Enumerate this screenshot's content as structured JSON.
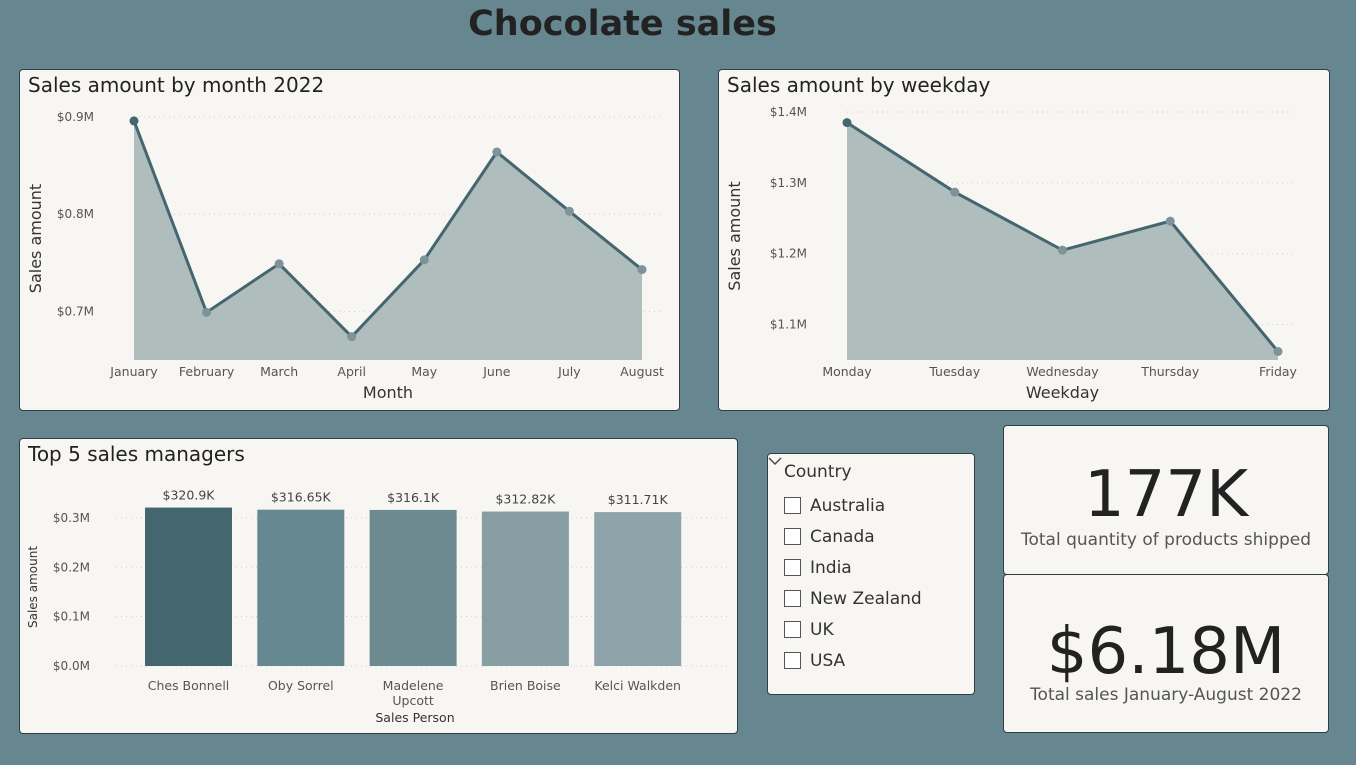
{
  "dashboard_title": "Chocolate sales",
  "colors": {
    "background": "#678790",
    "panel": "#f8f6f2",
    "line": "#44666f",
    "area": "#b0bdbd"
  },
  "chart_data": [
    {
      "type": "area",
      "title": "Sales amount by month 2022",
      "xlabel": "Month",
      "ylabel": "Sales amount",
      "categories": [
        "January",
        "February",
        "March",
        "April",
        "May",
        "June",
        "July",
        "August"
      ],
      "values": [
        0.896,
        0.699,
        0.749,
        0.674,
        0.753,
        0.864,
        0.803,
        0.743
      ],
      "y_ticks": [
        0.7,
        0.8,
        0.9
      ],
      "y_tick_labels": [
        "$0.7M",
        "$0.8M",
        "$0.9M"
      ],
      "ylim": [
        0.65,
        0.9
      ],
      "grid": true
    },
    {
      "type": "area",
      "title": "Sales amount by weekday",
      "xlabel": "Weekday",
      "ylabel": "Sales amount",
      "categories": [
        "Monday",
        "Tuesday",
        "Wednesday",
        "Thursday",
        "Friday"
      ],
      "values": [
        1.385,
        1.287,
        1.205,
        1.246,
        1.062
      ],
      "y_ticks": [
        1.1,
        1.2,
        1.3,
        1.4
      ],
      "y_tick_labels": [
        "$1.1M",
        "$1.2M",
        "$1.3M",
        "$1.4M"
      ],
      "ylim": [
        1.05,
        1.4
      ],
      "grid": true
    },
    {
      "type": "bar",
      "title": "Top 5 sales managers",
      "xlabel": "Sales Person",
      "ylabel": "Sales amount",
      "categories": [
        "Ches Bonnell",
        "Oby Sorrel",
        "Madelene Upcott",
        "Brien Boise",
        "Kelci Walkden"
      ],
      "values": [
        0.3209,
        0.31665,
        0.3161,
        0.31282,
        0.31171
      ],
      "data_labels": [
        "$320.9K",
        "$316.65K",
        "$316.1K",
        "$312.82K",
        "$311.71K"
      ],
      "bar_colors": [
        "#44666f",
        "#668890",
        "#6d8a91",
        "#879ea3",
        "#8fa4aa"
      ],
      "y_ticks": [
        0,
        0.1,
        0.2,
        0.3
      ],
      "y_tick_labels": [
        "$0.0M",
        "$0.1M",
        "$0.2M",
        "$0.3M"
      ],
      "ylim": [
        0,
        0.32
      ],
      "grid": true
    }
  ],
  "slicer": {
    "header": "Country",
    "items": [
      "Australia",
      "Canada",
      "India",
      "New Zealand",
      "UK",
      "USA"
    ]
  },
  "kpis": {
    "quantity": {
      "value": "177K",
      "label": "Total quantity of products shipped"
    },
    "sales": {
      "value": "$6.18M",
      "label": "Total sales January-August 2022"
    }
  }
}
